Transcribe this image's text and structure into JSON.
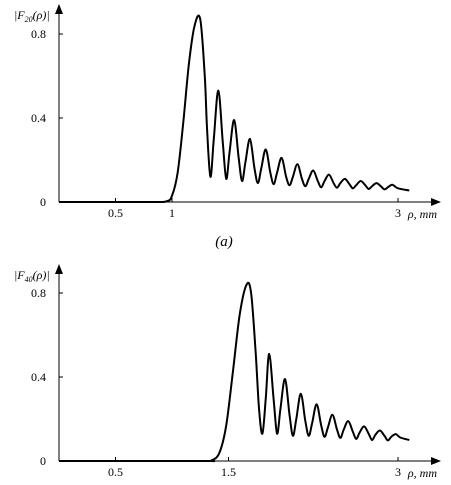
{
  "chart_data": [
    {
      "type": "line",
      "ylabel": {
        "open": "|F",
        "sub": "20",
        "rest": "(ρ)|"
      },
      "xlabel": "ρ, mm",
      "caption": "(a)",
      "xlim": [
        0,
        3.25
      ],
      "ylim": [
        0,
        0.96
      ],
      "x_ticks": [
        {
          "value": 0.5,
          "label": "0.5"
        },
        {
          "value": 1,
          "label": "1"
        },
        {
          "value": 3,
          "label": "3"
        }
      ],
      "y_ticks": [
        {
          "value": 0,
          "label": "0"
        },
        {
          "value": 0.4,
          "label": "0.4"
        },
        {
          "value": 0.8,
          "label": "0.8"
        }
      ],
      "x_origin_label": "0",
      "series": [
        {
          "color": "#000000",
          "points": [
            [
              0.0,
              0.0
            ],
            [
              0.8,
              0.0
            ],
            [
              0.95,
              0.003
            ],
            [
              1.0,
              0.03
            ],
            [
              1.05,
              0.14
            ],
            [
              1.1,
              0.38
            ],
            [
              1.15,
              0.66
            ],
            [
              1.2,
              0.84
            ],
            [
              1.25,
              0.87
            ],
            [
              1.29,
              0.6
            ],
            [
              1.31,
              0.35
            ],
            [
              1.34,
              0.12
            ],
            [
              1.37,
              0.3
            ],
            [
              1.41,
              0.53
            ],
            [
              1.45,
              0.28
            ],
            [
              1.48,
              0.11
            ],
            [
              1.51,
              0.24
            ],
            [
              1.55,
              0.39
            ],
            [
              1.59,
              0.21
            ],
            [
              1.62,
              0.1
            ],
            [
              1.65,
              0.19
            ],
            [
              1.69,
              0.3
            ],
            [
              1.73,
              0.16
            ],
            [
              1.76,
              0.09
            ],
            [
              1.79,
              0.16
            ],
            [
              1.83,
              0.25
            ],
            [
              1.87,
              0.14
            ],
            [
              1.9,
              0.085
            ],
            [
              1.93,
              0.14
            ],
            [
              1.97,
              0.21
            ],
            [
              2.01,
              0.12
            ],
            [
              2.04,
              0.08
            ],
            [
              2.07,
              0.12
            ],
            [
              2.11,
              0.18
            ],
            [
              2.15,
              0.11
            ],
            [
              2.18,
              0.075
            ],
            [
              2.21,
              0.11
            ],
            [
              2.25,
              0.15
            ],
            [
              2.29,
              0.1
            ],
            [
              2.32,
              0.07
            ],
            [
              2.35,
              0.1
            ],
            [
              2.39,
              0.13
            ],
            [
              2.43,
              0.09
            ],
            [
              2.46,
              0.068
            ],
            [
              2.49,
              0.09
            ],
            [
              2.53,
              0.11
            ],
            [
              2.57,
              0.085
            ],
            [
              2.6,
              0.065
            ],
            [
              2.63,
              0.08
            ],
            [
              2.67,
              0.1
            ],
            [
              2.71,
              0.08
            ],
            [
              2.74,
              0.062
            ],
            [
              2.77,
              0.075
            ],
            [
              2.81,
              0.09
            ],
            [
              2.85,
              0.074
            ],
            [
              2.88,
              0.06
            ],
            [
              2.91,
              0.07
            ],
            [
              2.95,
              0.082
            ],
            [
              3.0,
              0.065
            ],
            [
              3.1,
              0.055
            ]
          ]
        }
      ]
    },
    {
      "type": "line",
      "ylabel": {
        "open": "|F",
        "sub": "40",
        "rest": "(ρ)|"
      },
      "xlabel": "ρ, mm",
      "caption": "",
      "xlim": [
        0,
        3.25
      ],
      "ylim": [
        0,
        0.96
      ],
      "x_ticks": [
        {
          "value": 0.5,
          "label": "0.5"
        },
        {
          "value": 1.5,
          "label": "1.5"
        },
        {
          "value": 3,
          "label": "3"
        }
      ],
      "y_ticks": [
        {
          "value": 0,
          "label": "0"
        },
        {
          "value": 0.4,
          "label": "0.4"
        },
        {
          "value": 0.8,
          "label": "0.8"
        }
      ],
      "x_origin_label": "0",
      "series": [
        {
          "color": "#000000",
          "points": [
            [
              0.0,
              0.0
            ],
            [
              1.25,
              0.0
            ],
            [
              1.35,
              0.003
            ],
            [
              1.42,
              0.04
            ],
            [
              1.48,
              0.17
            ],
            [
              1.54,
              0.43
            ],
            [
              1.6,
              0.7
            ],
            [
              1.66,
              0.84
            ],
            [
              1.7,
              0.8
            ],
            [
              1.74,
              0.52
            ],
            [
              1.77,
              0.25
            ],
            [
              1.8,
              0.13
            ],
            [
              1.83,
              0.3
            ],
            [
              1.86,
              0.51
            ],
            [
              1.9,
              0.29
            ],
            [
              1.93,
              0.13
            ],
            [
              1.96,
              0.25
            ],
            [
              2.0,
              0.39
            ],
            [
              2.04,
              0.22
            ],
            [
              2.07,
              0.12
            ],
            [
              2.1,
              0.2
            ],
            [
              2.14,
              0.32
            ],
            [
              2.18,
              0.19
            ],
            [
              2.21,
              0.12
            ],
            [
              2.24,
              0.18
            ],
            [
              2.28,
              0.27
            ],
            [
              2.32,
              0.17
            ],
            [
              2.35,
              0.115
            ],
            [
              2.38,
              0.16
            ],
            [
              2.42,
              0.22
            ],
            [
              2.46,
              0.15
            ],
            [
              2.49,
              0.11
            ],
            [
              2.52,
              0.15
            ],
            [
              2.56,
              0.19
            ],
            [
              2.6,
              0.14
            ],
            [
              2.63,
              0.105
            ],
            [
              2.66,
              0.135
            ],
            [
              2.7,
              0.165
            ],
            [
              2.74,
              0.13
            ],
            [
              2.77,
              0.1
            ],
            [
              2.8,
              0.125
            ],
            [
              2.84,
              0.145
            ],
            [
              2.88,
              0.12
            ],
            [
              2.91,
              0.098
            ],
            [
              2.94,
              0.115
            ],
            [
              2.98,
              0.128
            ],
            [
              3.02,
              0.112
            ],
            [
              3.1,
              0.1
            ]
          ]
        }
      ]
    }
  ]
}
